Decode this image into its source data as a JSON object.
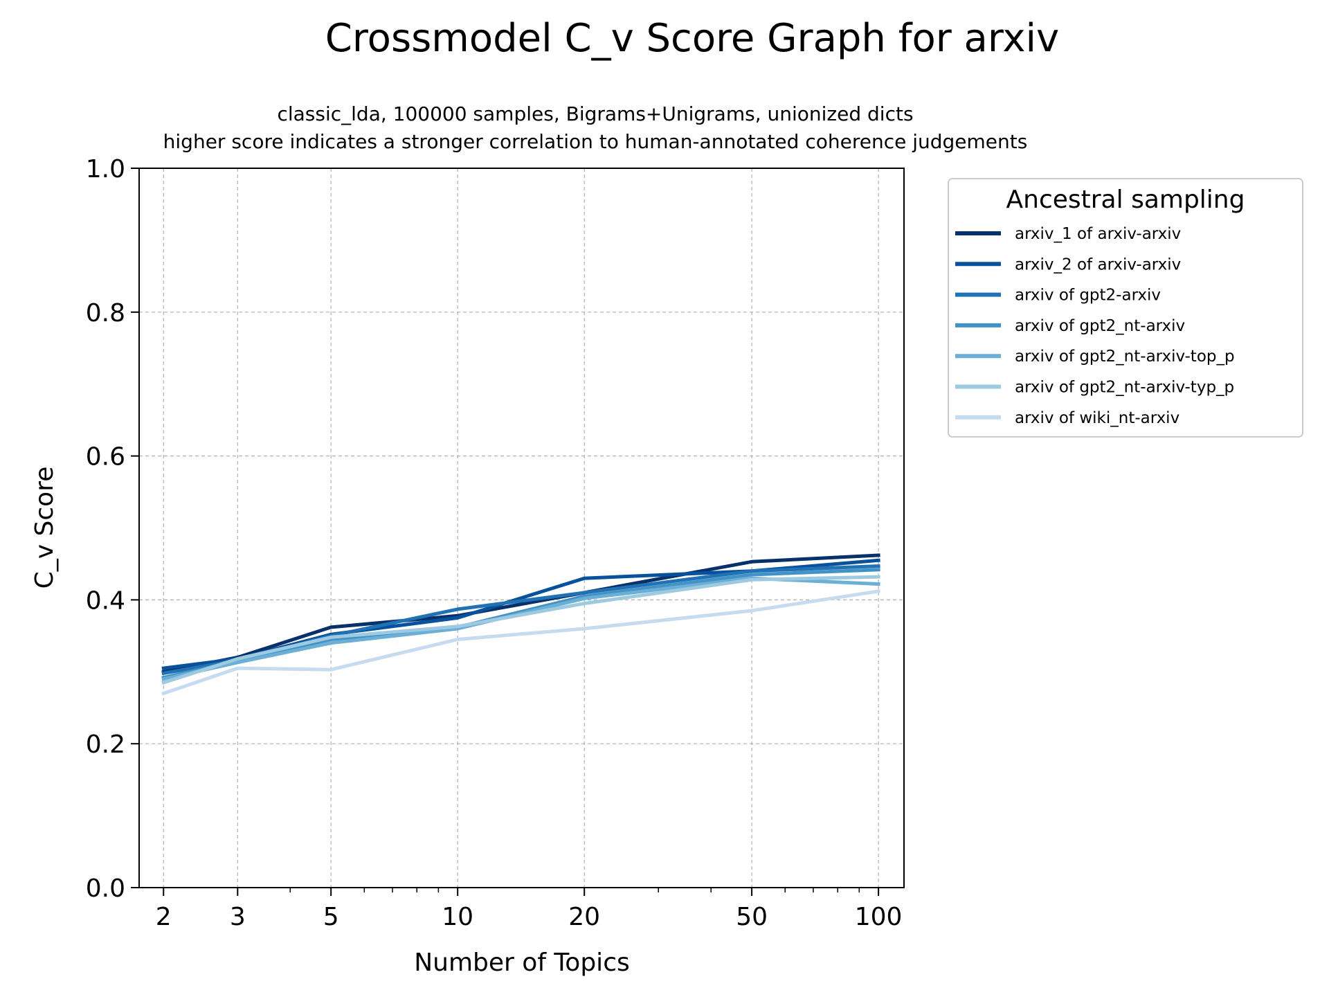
{
  "chart_data": {
    "type": "line",
    "title": "Crossmodel C_v Score Graph for arxiv",
    "subtitle_lines": [
      "classic_lda, 100000 samples, Bigrams+Unigrams, unionized dicts",
      "higher score indicates a stronger correlation to human-annotated coherence judgements"
    ],
    "xlabel": "Number of Topics",
    "ylabel": "C_v Score",
    "x_scale": "log",
    "xlim": [
      1.75,
      115
    ],
    "ylim": [
      0,
      1.0
    ],
    "x": [
      2,
      3,
      5,
      10,
      20,
      50,
      100
    ],
    "x_tick_labels": [
      "2",
      "3",
      "5",
      "10",
      "20",
      "50",
      "100"
    ],
    "y_ticks": [
      0.0,
      0.2,
      0.4,
      0.6,
      0.8,
      1.0
    ],
    "y_tick_labels": [
      "0.0",
      "0.2",
      "0.4",
      "0.6",
      "0.8",
      "1.0"
    ],
    "grid": true,
    "legend": {
      "title": "Ancestral sampling",
      "placement": "outside-right-top"
    },
    "series": [
      {
        "name": "arxiv_1 of arxiv-arxiv",
        "color": "#08306b",
        "values": [
          0.3,
          0.32,
          0.362,
          0.378,
          0.41,
          0.453,
          0.462
        ]
      },
      {
        "name": "arxiv_2 of arxiv-arxiv",
        "color": "#08519c",
        "values": [
          0.305,
          0.318,
          0.352,
          0.375,
          0.43,
          0.44,
          0.455
        ]
      },
      {
        "name": "arxiv of gpt2-arxiv",
        "color": "#2171b5",
        "values": [
          0.298,
          0.316,
          0.35,
          0.387,
          0.41,
          0.44,
          0.447
        ]
      },
      {
        "name": "arxiv of gpt2_nt-arxiv",
        "color": "#4292c6",
        "values": [
          0.292,
          0.315,
          0.345,
          0.362,
          0.405,
          0.435,
          0.442
        ]
      },
      {
        "name": "arxiv of gpt2_nt-arxiv-top_p",
        "color": "#6baed6",
        "values": [
          0.29,
          0.313,
          0.34,
          0.36,
          0.402,
          0.43,
          0.422
        ]
      },
      {
        "name": "arxiv of gpt2_nt-arxiv-typ_p",
        "color": "#9ecae1",
        "values": [
          0.285,
          0.318,
          0.348,
          0.363,
          0.395,
          0.428,
          0.432
        ]
      },
      {
        "name": "arxiv of wiki_nt-arxiv",
        "color": "#c6dbef",
        "values": [
          0.27,
          0.305,
          0.303,
          0.345,
          0.36,
          0.385,
          0.412
        ]
      }
    ]
  }
}
